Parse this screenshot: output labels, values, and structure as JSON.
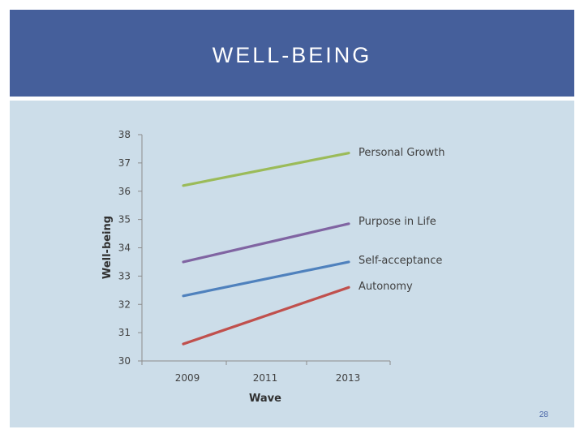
{
  "slide": {
    "title": "WELL-BEING",
    "page_number": "28"
  },
  "colors": {
    "header": "#455f9b",
    "panel": "#ccdde9"
  },
  "chart_data": {
    "type": "line",
    "title": "",
    "xlabel": "Wave",
    "ylabel": "Well-being",
    "categories": [
      "2009",
      "2011",
      "2013"
    ],
    "ylim": [
      30,
      38
    ],
    "yticks": [
      30,
      31,
      32,
      33,
      34,
      35,
      36,
      37,
      38
    ],
    "grid": false,
    "legend": "line-end labels",
    "series": [
      {
        "name": "Personal Growth",
        "values": [
          36.2,
          36.8,
          37.35
        ],
        "color": "#9bbb59"
      },
      {
        "name": "Purpose in Life",
        "values": [
          33.5,
          34.2,
          34.85
        ],
        "color": "#8064a2"
      },
      {
        "name": "Self-acceptance",
        "values": [
          32.3,
          32.9,
          33.5
        ],
        "color": "#4f81bd"
      },
      {
        "name": "Autonomy",
        "values": [
          30.6,
          31.6,
          32.6
        ],
        "color": "#c0504d"
      }
    ]
  }
}
